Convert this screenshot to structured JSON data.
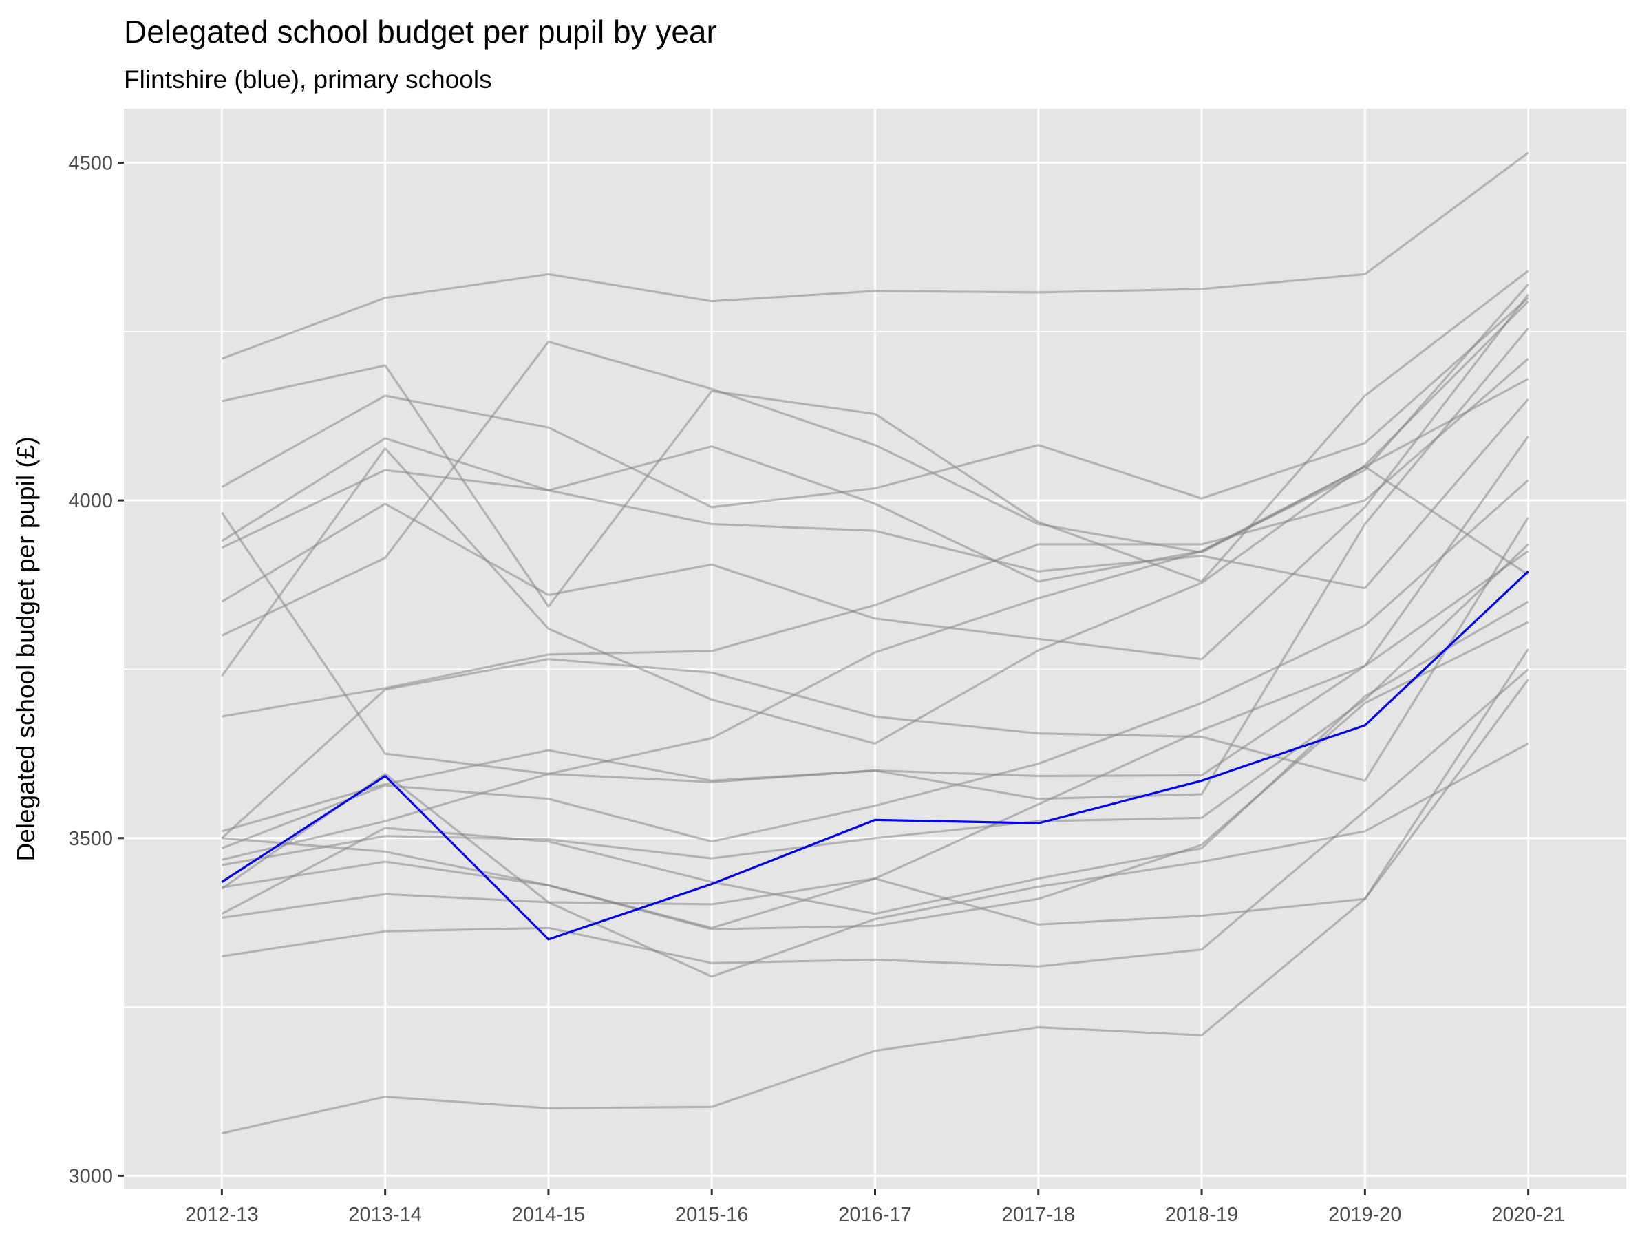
{
  "chart_data": {
    "type": "line",
    "title": "Delegated school budget per pupil by year",
    "subtitle": "Flintshire (blue), primary schools",
    "xlabel": "",
    "ylabel": "Delegated school budget per pupil (£)",
    "categories": [
      "2012-13",
      "2013-14",
      "2014-15",
      "2015-16",
      "2016-17",
      "2017-18",
      "2018-19",
      "2019-20",
      "2020-21"
    ],
    "ylim": [
      2980,
      4580
    ],
    "y_ticks": [
      3000,
      3500,
      4000,
      4500
    ],
    "y_tick_labels": [
      "3000",
      "3500",
      "4000",
      "4500"
    ],
    "y_minor_ticks": [
      3250,
      3750,
      4250
    ],
    "grid": true,
    "legend": "none",
    "colors": {
      "panel_background": "#e5e5e5",
      "grid": "#ffffff",
      "other_series": "#7f7f7f",
      "highlight": "#0000ff"
    },
    "series": [
      {
        "highlight": false,
        "values": [
          4210,
          4300,
          4335,
          4295,
          4310,
          4308,
          4313,
          4335,
          4515
        ]
      },
      {
        "highlight": false,
        "values": [
          4147,
          4200,
          3843,
          4162,
          4128,
          3968,
          3880,
          4155,
          4340
        ]
      },
      {
        "highlight": false,
        "values": [
          4020,
          4155,
          4108,
          3990,
          4018,
          4082,
          4003,
          4085,
          4300
        ]
      },
      {
        "highlight": false,
        "values": [
          3940,
          4092,
          4015,
          4080,
          3995,
          3880,
          3925,
          4045,
          4320
        ]
      },
      {
        "highlight": false,
        "values": [
          3930,
          4045,
          4015,
          3965,
          3955,
          3895,
          3918,
          3870,
          4150
        ]
      },
      {
        "highlight": false,
        "values": [
          3850,
          3995,
          3860,
          3905,
          3825,
          3795,
          3765,
          3990,
          4305
        ]
      },
      {
        "highlight": false,
        "values": [
          3800,
          3915,
          4235,
          4165,
          4082,
          3965,
          3923,
          4050,
          4180
        ]
      },
      {
        "highlight": false,
        "values": [
          3740,
          4077,
          3810,
          3705,
          3640,
          3778,
          3878,
          4052,
          4295
        ]
      },
      {
        "highlight": false,
        "values": [
          3680,
          3722,
          3772,
          3777,
          3845,
          3935,
          3935,
          4000,
          4210
        ]
      },
      {
        "highlight": false,
        "values": [
          3982,
          3625,
          3595,
          3583,
          3600,
          3592,
          3593,
          3755,
          4095
        ]
      },
      {
        "highlight": false,
        "values": [
          3510,
          3580,
          3630,
          3585,
          3600,
          3558,
          3565,
          3965,
          4255
        ]
      },
      {
        "highlight": false,
        "values": [
          3500,
          3720,
          3765,
          3745,
          3680,
          3655,
          3650,
          3585,
          3975
        ]
      },
      {
        "highlight": false,
        "values": [
          3485,
          3578,
          3558,
          3495,
          3548,
          3610,
          3700,
          3815,
          4030
        ]
      },
      {
        "highlight": false,
        "values": [
          3468,
          3525,
          3595,
          3648,
          3775,
          3855,
          3925,
          4050,
          3890
        ]
      },
      {
        "highlight": false,
        "values": [
          3460,
          3503,
          3498,
          3470,
          3500,
          3525,
          3530,
          3705,
          3935
        ]
      },
      {
        "highlight": false,
        "values": [
          3427,
          3465,
          3430,
          3367,
          3440,
          3372,
          3385,
          3410,
          3780
        ]
      },
      {
        "highlight": false,
        "values": [
          3388,
          3515,
          3495,
          3435,
          3388,
          3440,
          3485,
          3710,
          3850
        ]
      },
      {
        "highlight": false,
        "values": [
          3382,
          3417,
          3405,
          3402,
          3440,
          3550,
          3660,
          3755,
          3925
        ]
      },
      {
        "highlight": false,
        "values": [
          3325,
          3362,
          3367,
          3315,
          3320,
          3310,
          3335,
          3540,
          3750
        ]
      },
      {
        "highlight": false,
        "values": [
          3425,
          3595,
          3405,
          3295,
          3380,
          3428,
          3465,
          3510,
          3640
        ]
      },
      {
        "highlight": false,
        "values": [
          3063,
          3117,
          3100,
          3102,
          3185,
          3220,
          3208,
          3410,
          3735
        ]
      },
      {
        "highlight": false,
        "values": [
          3500,
          3480,
          3430,
          3365,
          3370,
          3410,
          3490,
          3700,
          3820
        ]
      },
      {
        "highlight": true,
        "values": [
          3435,
          3592,
          3350,
          3432,
          3527,
          3522,
          3585,
          3667,
          3895
        ]
      }
    ]
  }
}
